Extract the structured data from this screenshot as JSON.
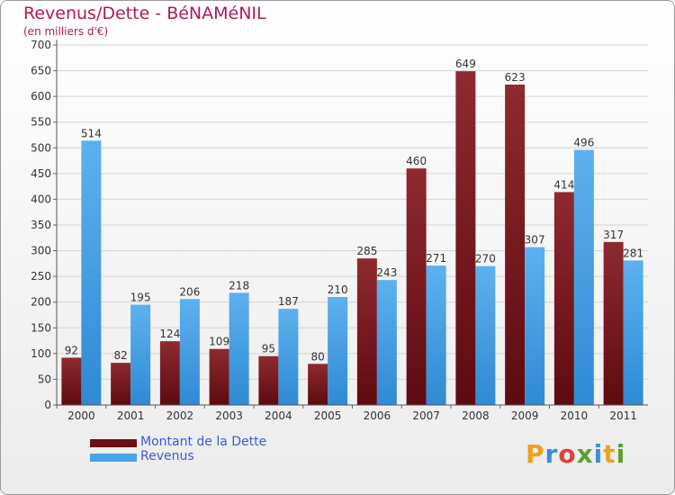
{
  "header": {
    "title": "Revenus/Dette - BéNAMéNIL",
    "subtitle": "(en milliers d'€)"
  },
  "legend": {
    "items": [
      {
        "label": "Montant de la Dette",
        "color": "#6b0f15"
      },
      {
        "label": "Revenus",
        "color": "#4aa3e6"
      }
    ]
  },
  "logo": {
    "letters": [
      "P",
      "r",
      "o",
      "x",
      "i",
      "t",
      "i"
    ],
    "colors": [
      "#f0a020",
      "#3a8fd8",
      "#e0403a",
      "#5aa030",
      "#3a8fd8",
      "#f0a020",
      "#5aa030"
    ]
  },
  "chart_data": {
    "type": "bar",
    "categories": [
      "2000",
      "2001",
      "2002",
      "2003",
      "2004",
      "2005",
      "2006",
      "2007",
      "2008",
      "2009",
      "2010",
      "2011"
    ],
    "series": [
      {
        "name": "Montant de la Dette",
        "color": "#6b0f15",
        "values": [
          92,
          82,
          124,
          109,
          95,
          80,
          285,
          460,
          649,
          623,
          414,
          317
        ]
      },
      {
        "name": "Revenus",
        "color": "#4aa3e6",
        "values": [
          514,
          195,
          206,
          218,
          187,
          210,
          243,
          271,
          270,
          307,
          496,
          281
        ]
      }
    ],
    "yticks": [
      0,
      50,
      100,
      150,
      200,
      250,
      300,
      350,
      400,
      450,
      500,
      550,
      600,
      650,
      700
    ],
    "ylim": [
      0,
      700
    ],
    "grid": true
  }
}
